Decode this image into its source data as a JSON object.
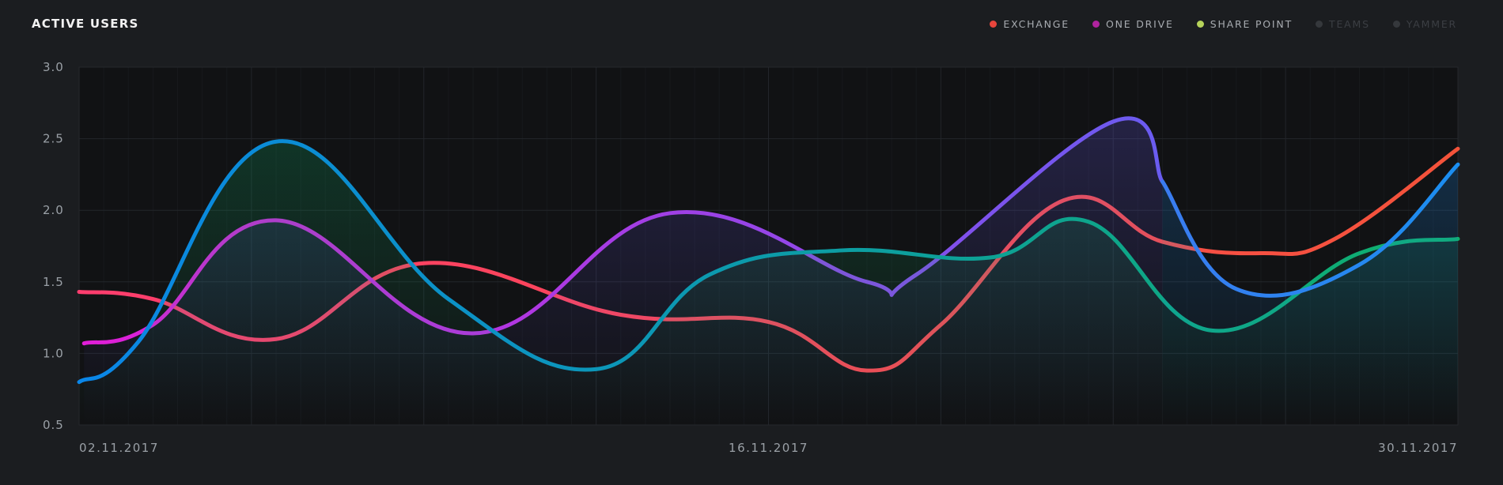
{
  "header": {
    "title": "ACTIVE USERS"
  },
  "legend": [
    {
      "label": "EXCHANGE",
      "color": "#e8453c",
      "active": true,
      "icon": "dot"
    },
    {
      "label": "ONE DRIVE",
      "color": "#b0239f",
      "active": true,
      "icon": "dot"
    },
    {
      "label": "SHARE POINT",
      "color": "#b6d35a",
      "active": true,
      "icon": "dot"
    },
    {
      "label": "TEAMS",
      "color": "#35383c",
      "active": false,
      "icon": "dot"
    },
    {
      "label": "YAMMER",
      "color": "#35383c",
      "active": false,
      "icon": "dot"
    }
  ],
  "colors": {
    "background": "#1b1d20",
    "plot_background": "#111214",
    "grid": "#23262a"
  },
  "chart_data": {
    "type": "line",
    "title": "ACTIVE USERS",
    "xlabel": "",
    "ylabel": "",
    "ylim": [
      0.5,
      3.0
    ],
    "xlim": [
      0,
      28
    ],
    "x_tick_labels": [
      "02.11.2017",
      "16.11.2017",
      "30.11.2017"
    ],
    "y_tick_labels": [
      "3.0",
      "2.5",
      "2.0",
      "1.5",
      "1.0",
      "0.5"
    ],
    "grid": true,
    "legend_position": "top-right",
    "series": [
      {
        "name": "EXCHANGE",
        "color_start": "#ff3d6e",
        "color_end": "#f4533a",
        "x": [
          0,
          1.5,
          4,
          7,
          11,
          14,
          16,
          17.5,
          20,
          22,
          24,
          25.5,
          28
        ],
        "values": [
          1.43,
          1.38,
          1.1,
          1.63,
          1.27,
          1.22,
          0.88,
          1.2,
          2.07,
          1.78,
          1.7,
          1.8,
          2.43
        ]
      },
      {
        "name": "ONE DRIVE",
        "color_start": "#e01ed8",
        "color_end": "#6a5cf0",
        "fill": true,
        "x": [
          0.1,
          1.5,
          4,
          8,
          12,
          16,
          17,
          21,
          22
        ],
        "values": [
          1.07,
          1.2,
          1.93,
          1.14,
          1.98,
          1.5,
          1.55,
          2.62,
          2.2
        ]
      },
      {
        "name": "SHARE POINT",
        "color_start": "#0a86e8",
        "color_end": "#0fb06a",
        "fill": true,
        "x": [
          0,
          1.2,
          4,
          7.5,
          10.5,
          12.8,
          15.5,
          18.5,
          20.5,
          23,
          26,
          28
        ],
        "values": [
          0.8,
          1.08,
          2.48,
          1.38,
          0.89,
          1.55,
          1.72,
          1.67,
          1.92,
          1.16,
          1.7,
          1.8
        ]
      },
      {
        "name": "SHARE POINT",
        "color_start": "#3a7cf0",
        "color_end": "#1b8ef0",
        "fill": true,
        "x": [
          22,
          23.5,
          26,
          28
        ],
        "values": [
          2.2,
          1.45,
          1.62,
          2.32
        ]
      }
    ]
  }
}
